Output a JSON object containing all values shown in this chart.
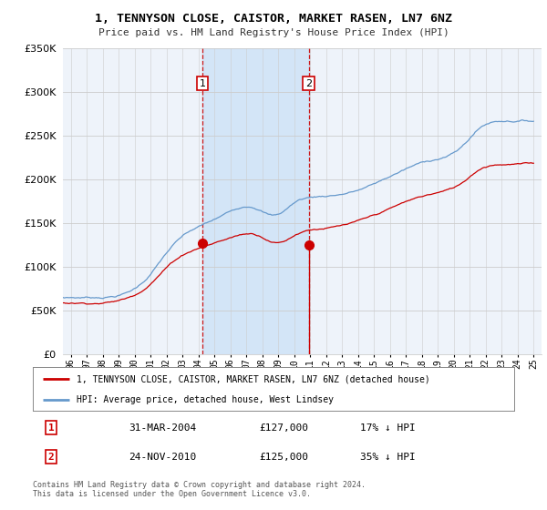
{
  "title": "1, TENNYSON CLOSE, CAISTOR, MARKET RASEN, LN7 6NZ",
  "subtitle": "Price paid vs. HM Land Registry's House Price Index (HPI)",
  "legend_line1": "1, TENNYSON CLOSE, CAISTOR, MARKET RASEN, LN7 6NZ (detached house)",
  "legend_line2": "HPI: Average price, detached house, West Lindsey",
  "annotation1_date": "31-MAR-2004",
  "annotation1_price": "£127,000",
  "annotation1_hpi": "17% ↓ HPI",
  "annotation2_date": "24-NOV-2010",
  "annotation2_price": "£125,000",
  "annotation2_hpi": "35% ↓ HPI",
  "footer": "Contains HM Land Registry data © Crown copyright and database right 2024.\nThis data is licensed under the Open Government Licence v3.0.",
  "hpi_color": "#6699cc",
  "price_color": "#cc0000",
  "sale1_year": 2004.25,
  "sale2_year": 2010.9,
  "sale1_price": 127000,
  "sale2_price": 125000,
  "ylim": [
    0,
    350000
  ],
  "xlim_start": 1995.5,
  "xlim_end": 2025.5,
  "background_color": "#ddeeff",
  "chart_bg": "#eef3fa",
  "shade_color": "#d0e4f7"
}
